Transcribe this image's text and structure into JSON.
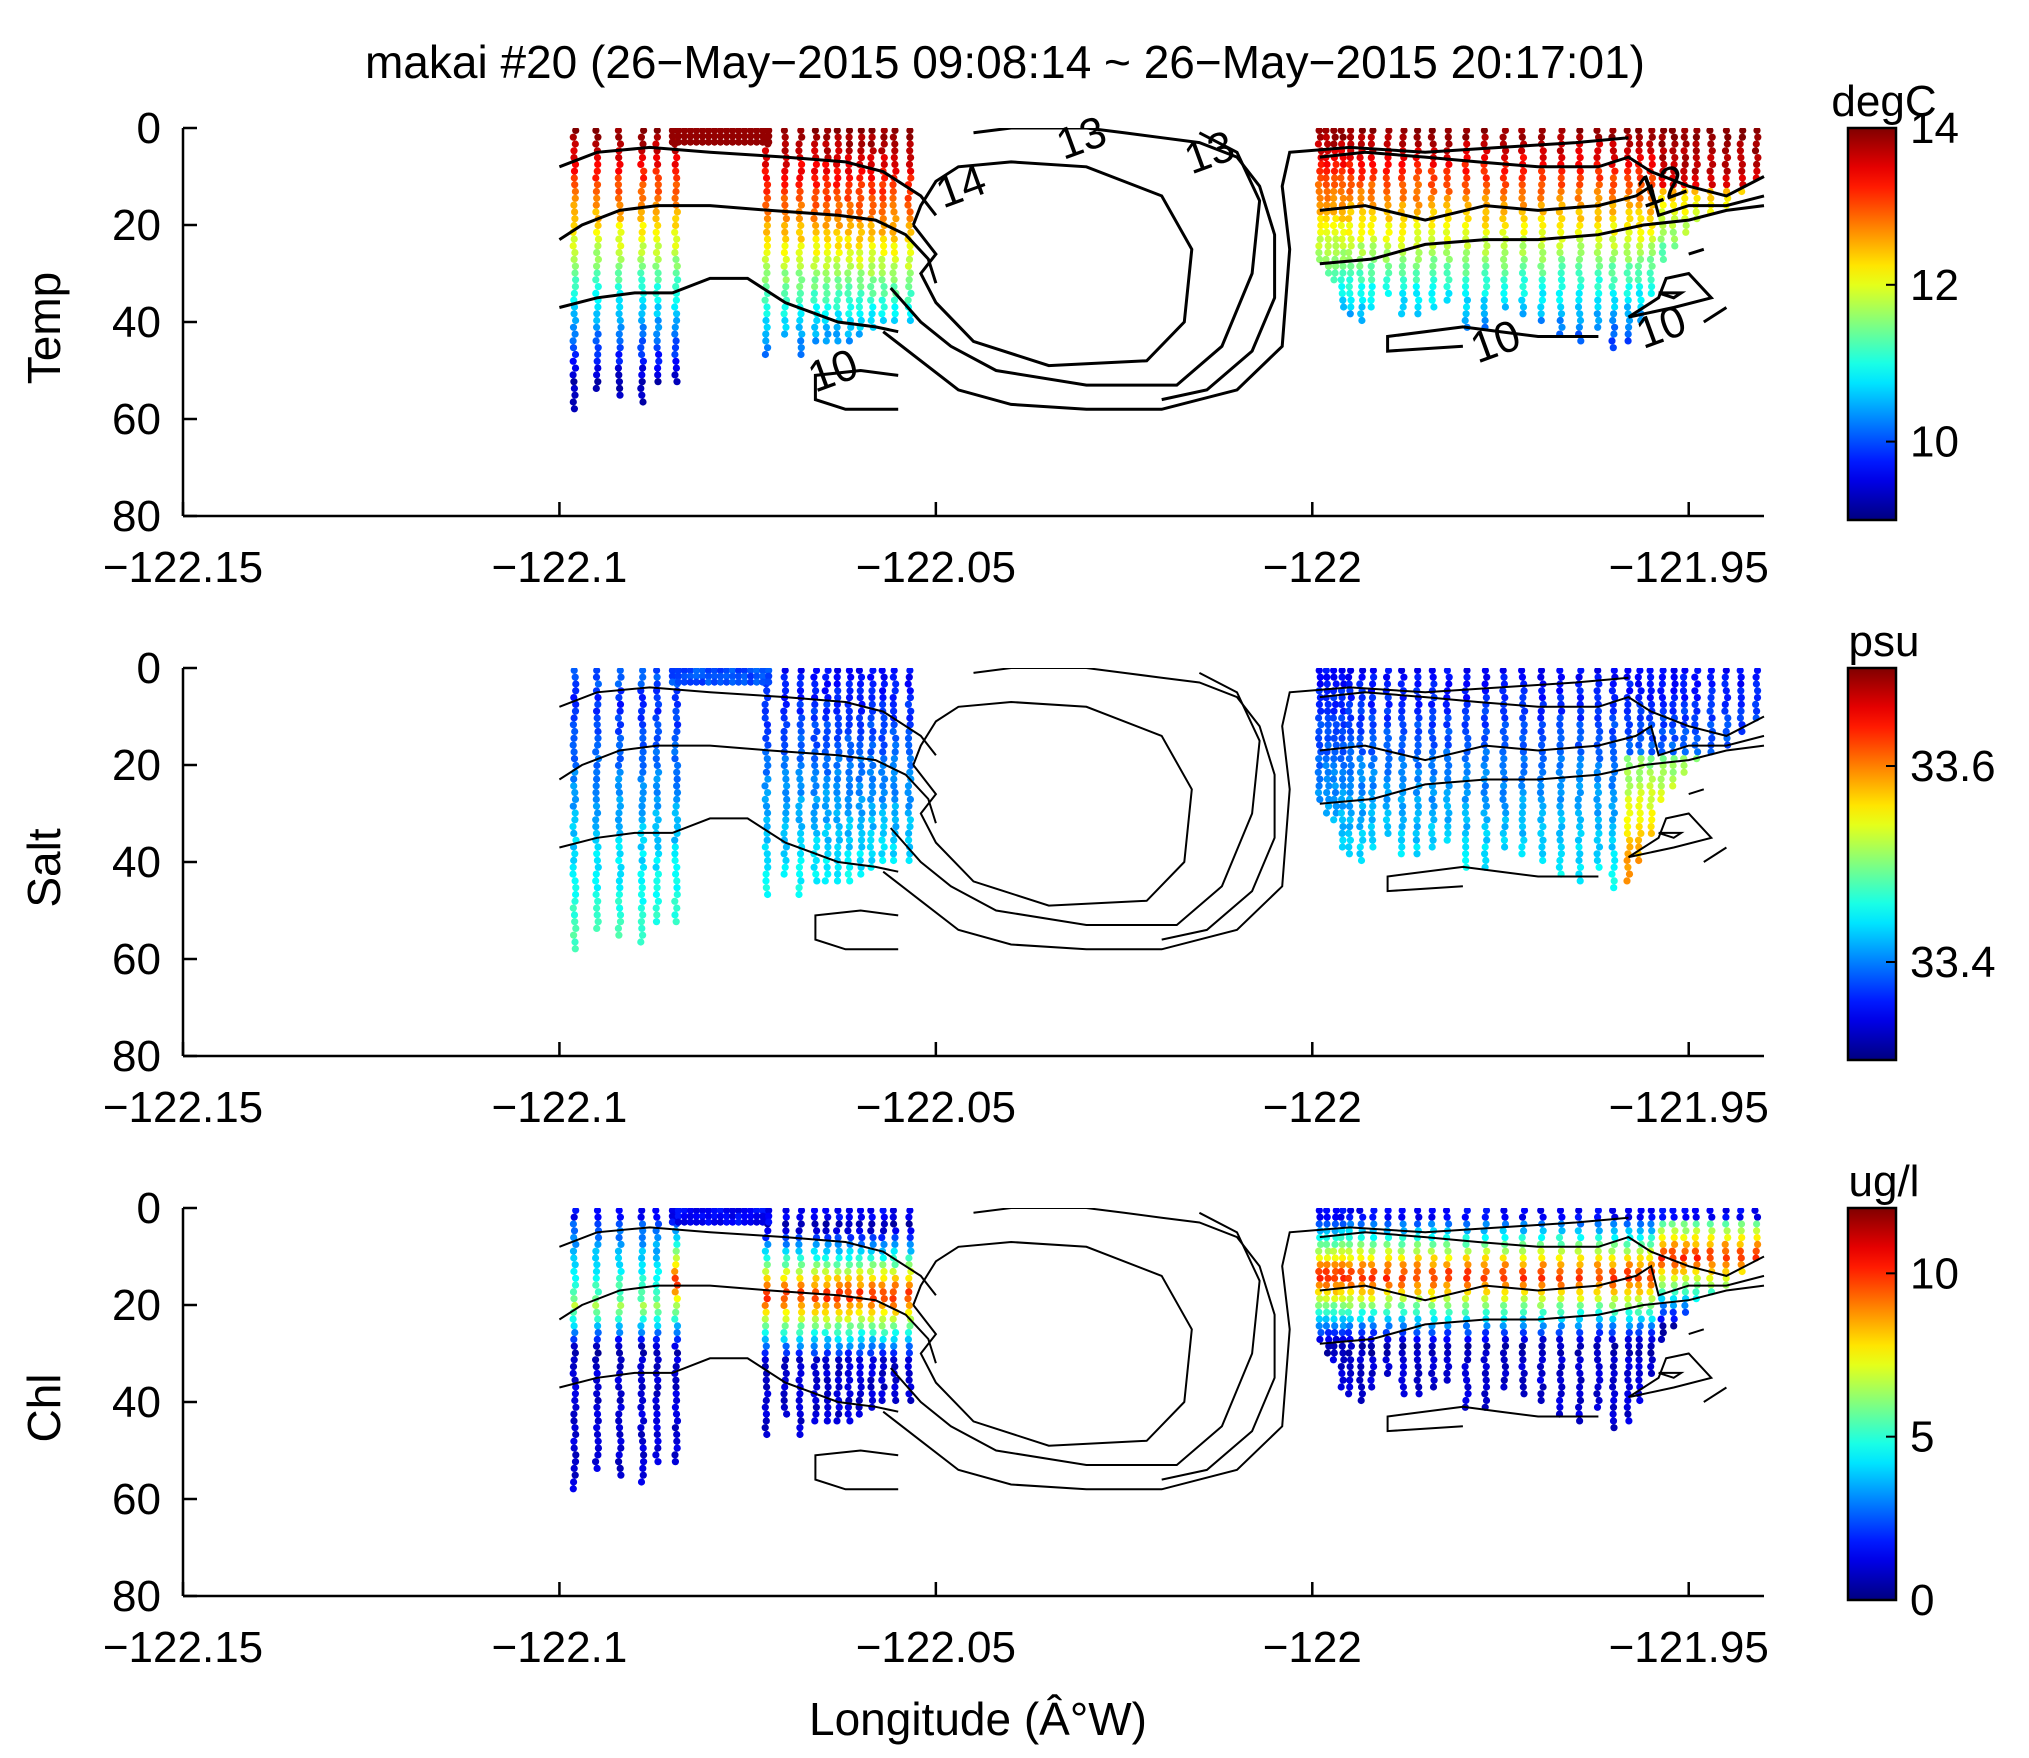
{
  "figure": {
    "title": "makai #20 (26−May−2015 09:08:14 ~ 26−May−2015 20:17:01)",
    "xlabel": "Longitude (Â°W)"
  },
  "chart_data": [
    {
      "type": "scatter",
      "ylabel": "Temp",
      "xlim": [
        -122.15,
        -121.94
      ],
      "ylim": [
        0,
        80
      ],
      "y_reversed": true,
      "xticks": [
        -122.15,
        -122.1,
        -122.05,
        -122,
        -121.95
      ],
      "xtick_labels": [
        "−122.15",
        "−122.1",
        "−122.05",
        "−122",
        "−121.95"
      ],
      "yticks": [
        0,
        20,
        40,
        60,
        80
      ],
      "ytick_labels": [
        "0",
        "20",
        "40",
        "60",
        "80"
      ],
      "colorbar": {
        "unit": "degC",
        "range": [
          9,
          14
        ],
        "ticks": [
          10,
          12,
          14
        ],
        "tick_labels": [
          "10",
          "12",
          "14"
        ],
        "colormap": "jet"
      },
      "contour_labels": [
        "13",
        "13",
        "14",
        "10",
        "10",
        "10",
        "12"
      ]
    },
    {
      "type": "scatter",
      "ylabel": "Salt",
      "xlim": [
        -122.15,
        -121.94
      ],
      "ylim": [
        0,
        80
      ],
      "y_reversed": true,
      "xticks": [
        -122.15,
        -122.1,
        -122.05,
        -122,
        -121.95
      ],
      "xtick_labels": [
        "−122.15",
        "−122.1",
        "−122.05",
        "−122",
        "−121.95"
      ],
      "yticks": [
        0,
        20,
        40,
        60,
        80
      ],
      "ytick_labels": [
        "0",
        "20",
        "40",
        "60",
        "80"
      ],
      "colorbar": {
        "unit": "psu",
        "range": [
          33.3,
          33.7
        ],
        "ticks": [
          33.4,
          33.6
        ],
        "tick_labels": [
          "33.4",
          "33.6"
        ],
        "colormap": "jet"
      }
    },
    {
      "type": "scatter",
      "ylabel": "Chl",
      "xlim": [
        -122.15,
        -121.94
      ],
      "ylim": [
        0,
        80
      ],
      "y_reversed": true,
      "xticks": [
        -122.15,
        -122.1,
        -122.05,
        -122,
        -121.95
      ],
      "xtick_labels": [
        "−122.15",
        "−122.1",
        "−122.05",
        "−122",
        "−121.95"
      ],
      "yticks": [
        0,
        20,
        40,
        60,
        80
      ],
      "ytick_labels": [
        "0",
        "20",
        "40",
        "60",
        "80"
      ],
      "colorbar": {
        "unit": "ug/l",
        "range": [
          0,
          12
        ],
        "ticks": [
          0,
          5,
          10
        ],
        "tick_labels": [
          "0",
          "5",
          "10"
        ],
        "colormap": "jet"
      }
    }
  ],
  "profiles": {
    "west": [
      {
        "lon": -122.098,
        "depth": 58
      },
      {
        "lon": -122.095,
        "depth": 54
      },
      {
        "lon": -122.092,
        "depth": 56
      },
      {
        "lon": -122.089,
        "depth": 57
      },
      {
        "lon": -122.087,
        "depth": 53
      },
      {
        "lon": -122.0845,
        "depth": 53
      },
      {
        "lon": -122.0725,
        "depth": 47
      },
      {
        "lon": -122.07,
        "depth": 43
      },
      {
        "lon": -122.068,
        "depth": 47
      },
      {
        "lon": -122.066,
        "depth": 45
      },
      {
        "lon": -122.0645,
        "depth": 44
      },
      {
        "lon": -122.063,
        "depth": 44
      },
      {
        "lon": -122.0615,
        "depth": 44
      },
      {
        "lon": -122.06,
        "depth": 43
      },
      {
        "lon": -122.0585,
        "depth": 42
      },
      {
        "lon": -122.057,
        "depth": 41
      },
      {
        "lon": -122.0555,
        "depth": 40
      },
      {
        "lon": -122.0535,
        "depth": 40
      }
    ],
    "east": [
      {
        "lon": -121.999,
        "depth": 28
      },
      {
        "lon": -121.998,
        "depth": 30
      },
      {
        "lon": -121.997,
        "depth": 32
      },
      {
        "lon": -121.996,
        "depth": 37
      },
      {
        "lon": -121.995,
        "depth": 39
      },
      {
        "lon": -121.9935,
        "depth": 40
      },
      {
        "lon": -121.992,
        "depth": 38
      },
      {
        "lon": -121.99,
        "depth": 35
      },
      {
        "lon": -121.988,
        "depth": 39
      },
      {
        "lon": -121.986,
        "depth": 39
      },
      {
        "lon": -121.984,
        "depth": 38
      },
      {
        "lon": -121.982,
        "depth": 36
      },
      {
        "lon": -121.9795,
        "depth": 42
      },
      {
        "lon": -121.977,
        "depth": 42
      },
      {
        "lon": -121.9745,
        "depth": 37
      },
      {
        "lon": -121.972,
        "depth": 39
      },
      {
        "lon": -121.9695,
        "depth": 41
      },
      {
        "lon": -121.967,
        "depth": 43
      },
      {
        "lon": -121.9645,
        "depth": 44
      },
      {
        "lon": -121.962,
        "depth": 42
      },
      {
        "lon": -121.96,
        "depth": 46
      },
      {
        "lon": -121.958,
        "depth": 44
      },
      {
        "lon": -121.9565,
        "depth": 40
      },
      {
        "lon": -121.955,
        "depth": 35
      },
      {
        "lon": -121.9535,
        "depth": 28
      },
      {
        "lon": -121.952,
        "depth": 25
      },
      {
        "lon": -121.9505,
        "depth": 22
      },
      {
        "lon": -121.949,
        "depth": 20
      },
      {
        "lon": -121.947,
        "depth": 18
      },
      {
        "lon": -121.945,
        "depth": 16
      },
      {
        "lon": -121.943,
        "depth": 14
      },
      {
        "lon": -121.941,
        "depth": 11
      }
    ]
  },
  "contours": [
    [
      [
        -122.1,
        8
      ],
      [
        -122.095,
        5
      ],
      [
        -122.088,
        4
      ],
      [
        -122.08,
        5
      ],
      [
        -122.07,
        6
      ],
      [
        -122.062,
        7
      ],
      [
        -122.057,
        9
      ],
      [
        -122.052,
        14
      ],
      [
        -122.05,
        18
      ]
    ],
    [
      [
        -122.1,
        23
      ],
      [
        -122.097,
        20
      ],
      [
        -122.092,
        17
      ],
      [
        -122.087,
        16
      ],
      [
        -122.08,
        16
      ],
      [
        -122.072,
        17
      ],
      [
        -122.063,
        18
      ],
      [
        -122.058,
        19
      ],
      [
        -122.054,
        22
      ],
      [
        -122.051,
        27
      ],
      [
        -122.05,
        32
      ]
    ],
    [
      [
        -122.1,
        37
      ],
      [
        -122.095,
        35
      ],
      [
        -122.09,
        34
      ],
      [
        -122.085,
        34
      ],
      [
        -122.08,
        31
      ],
      [
        -122.075,
        31
      ],
      [
        -122.07,
        36
      ],
      [
        -122.063,
        40
      ],
      [
        -122.058,
        41
      ],
      [
        -122.055,
        42
      ]
    ],
    [
      [
        -122.055,
        58
      ],
      [
        -122.062,
        58
      ],
      [
        -122.066,
        56
      ],
      [
        -122.066,
        51
      ],
      [
        -122.06,
        50
      ],
      [
        -122.055,
        51
      ]
    ],
    [
      [
        -122.053,
        20
      ],
      [
        -122.05,
        26
      ],
      [
        -122.052,
        30
      ],
      [
        -122.05,
        36
      ],
      [
        -122.045,
        44
      ],
      [
        -122.035,
        49
      ],
      [
        -122.022,
        48
      ],
      [
        -122.017,
        40
      ],
      [
        -122.016,
        25
      ],
      [
        -122.02,
        14
      ],
      [
        -122.03,
        8
      ],
      [
        -122.04,
        7
      ],
      [
        -122.047,
        8
      ],
      [
        -122.05,
        11
      ],
      [
        -122.052,
        16
      ],
      [
        -122.053,
        20
      ]
    ],
    [
      [
        -122.056,
        33
      ],
      [
        -122.052,
        40
      ],
      [
        -122.048,
        45
      ],
      [
        -122.042,
        50
      ],
      [
        -122.03,
        53
      ],
      [
        -122.018,
        53
      ],
      [
        -122.012,
        45
      ],
      [
        -122.008,
        30
      ],
      [
        -122.007,
        15
      ],
      [
        -122.01,
        5
      ],
      [
        -122.015,
        1
      ]
    ],
    [
      [
        -122.057,
        42
      ],
      [
        -122.052,
        48
      ],
      [
        -122.047,
        54
      ],
      [
        -122.04,
        57
      ],
      [
        -122.03,
        58
      ],
      [
        -122.02,
        58
      ],
      [
        -122.01,
        54
      ],
      [
        -122.004,
        45
      ],
      [
        -122.003,
        25
      ],
      [
        -122.004,
        12
      ],
      [
        -122.003,
        5
      ],
      [
        -121.995,
        4
      ],
      [
        -121.985,
        5
      ],
      [
        -121.975,
        4
      ],
      [
        -121.965,
        3
      ],
      [
        -121.958,
        2
      ]
    ],
    [
      [
        -122.045,
        1
      ],
      [
        -122.04,
        0
      ],
      [
        -122.03,
        0
      ],
      [
        -122.025,
        1
      ],
      [
        -122.02,
        2
      ],
      [
        -122.015,
        3
      ],
      [
        -122.01,
        6
      ],
      [
        -122.007,
        12
      ],
      [
        -122.005,
        22
      ],
      [
        -122.005,
        35
      ],
      [
        -122.008,
        46
      ],
      [
        -122.014,
        54
      ],
      [
        -122.02,
        56
      ]
    ],
    [
      [
        -121.999,
        6
      ],
      [
        -121.993,
        5
      ],
      [
        -121.985,
        6
      ],
      [
        -121.978,
        7
      ],
      [
        -121.97,
        8
      ],
      [
        -121.962,
        8
      ],
      [
        -121.958,
        6
      ],
      [
        -121.955,
        9
      ],
      [
        -121.95,
        12
      ],
      [
        -121.945,
        14
      ],
      [
        -121.94,
        10
      ]
    ],
    [
      [
        -121.999,
        17
      ],
      [
        -121.993,
        16
      ],
      [
        -121.985,
        19
      ],
      [
        -121.977,
        16
      ],
      [
        -121.97,
        17
      ],
      [
        -121.962,
        16
      ],
      [
        -121.957,
        14
      ],
      [
        -121.955,
        12
      ],
      [
        -121.954,
        18
      ],
      [
        -121.95,
        16
      ],
      [
        -121.945,
        16
      ],
      [
        -121.94,
        14
      ]
    ],
    [
      [
        -121.999,
        28
      ],
      [
        -121.992,
        27
      ],
      [
        -121.985,
        24
      ],
      [
        -121.977,
        23
      ],
      [
        -121.97,
        23
      ],
      [
        -121.962,
        22
      ],
      [
        -121.956,
        20
      ],
      [
        -121.95,
        19
      ],
      [
        -121.945,
        17
      ],
      [
        -121.94,
        16
      ]
    ],
    [
      [
        -121.98,
        45
      ],
      [
        -121.99,
        46
      ],
      [
        -121.99,
        43
      ],
      [
        -121.98,
        41
      ],
      [
        -121.975,
        42
      ],
      [
        -121.97,
        43
      ],
      [
        -121.962,
        43
      ]
    ],
    [
      [
        -121.958,
        39
      ],
      [
        -121.954,
        35
      ],
      [
        -121.953,
        31
      ],
      [
        -121.95,
        30
      ],
      [
        -121.947,
        35
      ],
      [
        -121.952,
        37
      ],
      [
        -121.958,
        39
      ]
    ],
    [
      [
        -121.954,
        34
      ],
      [
        -121.951,
        34
      ],
      [
        -121.952,
        35
      ],
      [
        -121.954,
        34
      ]
    ],
    [
      [
        -121.948,
        40
      ],
      [
        -121.945,
        37
      ]
    ],
    [
      [
        -121.95,
        26
      ],
      [
        -121.948,
        25
      ]
    ]
  ]
}
